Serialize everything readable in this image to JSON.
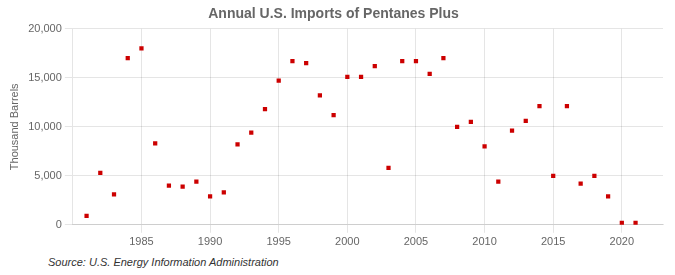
{
  "chart_data": {
    "type": "scatter",
    "title": "Annual U.S. Imports of Pentanes Plus",
    "ylabel": "Thousand Barrels",
    "annotations": [
      "Source: U.S. Energy Information Administration"
    ],
    "x": [
      1981,
      1982,
      1983,
      1984,
      1985,
      1986,
      1987,
      1988,
      1989,
      1990,
      1991,
      1992,
      1993,
      1994,
      1995,
      1996,
      1997,
      1998,
      1999,
      2000,
      2001,
      2002,
      2003,
      2004,
      2005,
      2006,
      2007,
      2008,
      2009,
      2010,
      2011,
      2012,
      2013,
      2014,
      2015,
      2016,
      2017,
      2018,
      2019,
      2020,
      2021
    ],
    "values": [
      900,
      5300,
      3100,
      17000,
      18000,
      8300,
      4000,
      3900,
      4400,
      2900,
      3300,
      8200,
      9400,
      11800,
      14700,
      16700,
      16500,
      13200,
      11200,
      15100,
      15100,
      16200,
      5800,
      16700,
      16700,
      15400,
      17000,
      10000,
      10500,
      8000,
      4400,
      9600,
      10600,
      12100,
      5000,
      12100,
      4200,
      5000,
      2900,
      200,
      200
    ],
    "color": "#cc0000",
    "marker": "square",
    "xlim": [
      1980,
      2023
    ],
    "xticks": [
      1985,
      1990,
      1995,
      2000,
      2005,
      2010,
      2015,
      2020
    ],
    "ylim": [
      0,
      20000
    ],
    "yticks": [
      0,
      {
        "value": 5000,
        "label": "5,000"
      },
      {
        "value": 10000,
        "label": "10,000"
      },
      {
        "value": 15000,
        "label": "15,000"
      },
      {
        "value": 20000,
        "label": "20,000"
      }
    ],
    "grid": true
  }
}
